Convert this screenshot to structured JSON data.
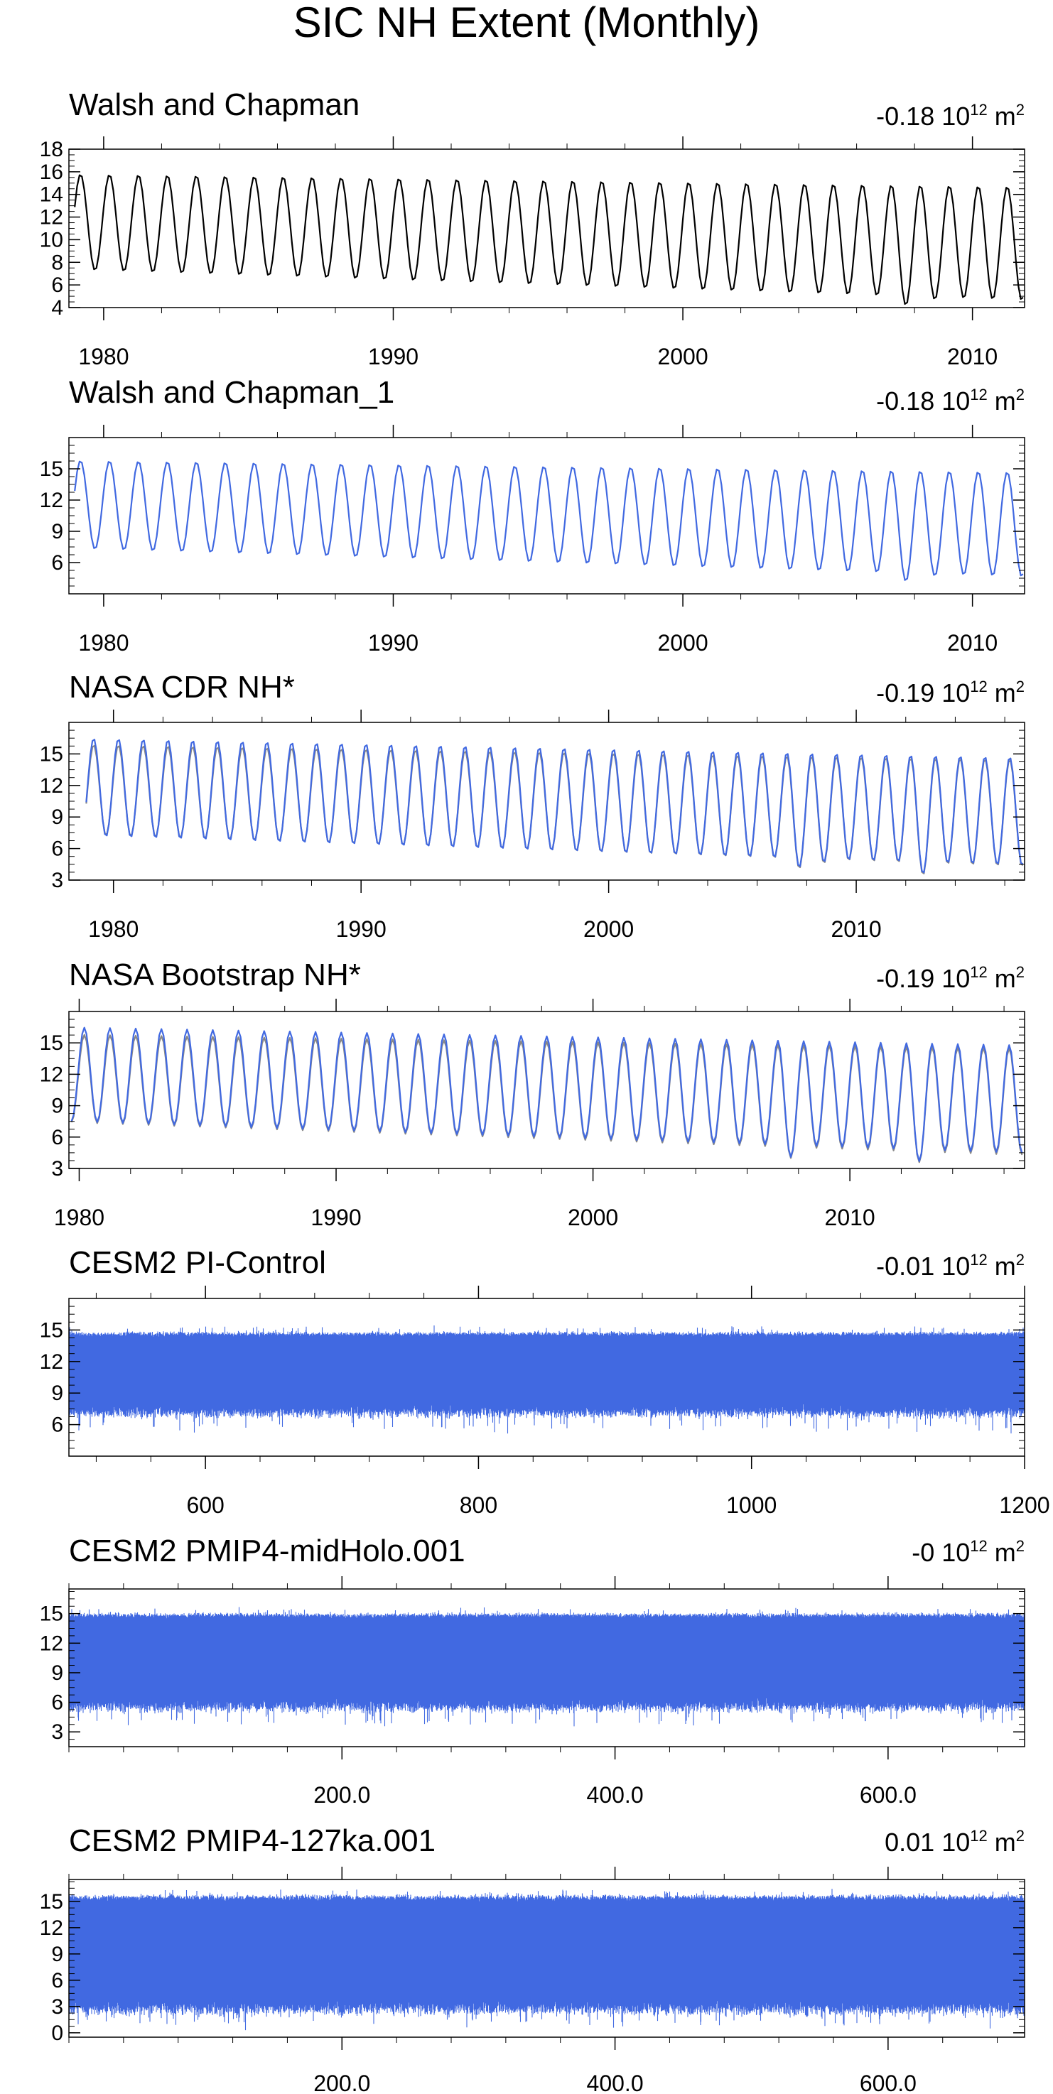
{
  "figure": {
    "title": "SIC NH Extent (Monthly)",
    "colors": {
      "observed": "#000000",
      "blue": "#4169e1",
      "grey": "#888888"
    }
  },
  "chart_data": [
    {
      "id": "p1",
      "type": "line",
      "title": "Walsh and Chapman",
      "trend": {
        "value": "-0.18",
        "base": "10",
        "exp": "12",
        "unit": "m",
        "unit_exp": "2"
      },
      "xlim": [
        1978.8,
        2011.8
      ],
      "xticks": [
        1980,
        1990,
        2000,
        2010
      ],
      "xtick_labels": [
        "1980",
        "1990",
        "2000",
        "2010"
      ],
      "ylim": [
        4,
        18
      ],
      "yticks": [
        4,
        6,
        8,
        10,
        12,
        14,
        16,
        18
      ],
      "ytick_labels": [
        "4",
        "6",
        "8",
        "10",
        "12",
        "14",
        "16",
        "18"
      ],
      "series": [
        {
          "name": "Walsh and Chapman",
          "color": "#000000",
          "style": "seasonal",
          "x_start": 1979.0,
          "x_end": 2011.75,
          "max_start": 15.7,
          "max_end": 14.5,
          "min_start": 7.7,
          "min_end": 4.8,
          "noise": 0.6,
          "low_events": [
            [
              2007.7,
              4.2
            ],
            [
              2008.7,
              4.7
            ],
            [
              2011.7,
              4.7
            ]
          ]
        }
      ]
    },
    {
      "id": "p2",
      "type": "line",
      "title": "Walsh and Chapman_1",
      "trend": {
        "value": "-0.18",
        "base": "10",
        "exp": "12",
        "unit": "m",
        "unit_exp": "2"
      },
      "xlim": [
        1978.8,
        2011.8
      ],
      "xticks": [
        1980,
        1990,
        2000,
        2010
      ],
      "xtick_labels": [
        "1980",
        "1990",
        "2000",
        "2010"
      ],
      "ylim": [
        3,
        18
      ],
      "yticks": [
        6,
        9,
        12,
        15
      ],
      "ytick_labels": [
        "6",
        "9",
        "12",
        "15"
      ],
      "series": [
        {
          "name": "Walsh and Chapman_1",
          "color": "#4169e1",
          "style": "seasonal",
          "x_start": 1979.0,
          "x_end": 2011.75,
          "max_start": 15.7,
          "max_end": 14.5,
          "min_start": 7.7,
          "min_end": 4.8,
          "noise": 0.6,
          "low_events": [
            [
              2007.7,
              4.2
            ],
            [
              2008.7,
              4.7
            ],
            [
              2011.7,
              4.7
            ]
          ]
        }
      ]
    },
    {
      "id": "p3",
      "type": "line",
      "title": "NASA CDR NH*",
      "trend": {
        "value": "-0.19",
        "base": "10",
        "exp": "12",
        "unit": "m",
        "unit_exp": "2"
      },
      "xlim": [
        1978.2,
        2016.8
      ],
      "xticks": [
        1980,
        1990,
        2000,
        2010
      ],
      "xtick_labels": [
        "1980",
        "1990",
        "2000",
        "2010"
      ],
      "ylim": [
        3,
        18
      ],
      "yticks": [
        3,
        6,
        9,
        12,
        15
      ],
      "ytick_labels": [
        "3",
        "6",
        "9",
        "12",
        "15"
      ],
      "series": [
        {
          "name": "grey",
          "color": "#888888",
          "style": "seasonal",
          "x_start": 1978.9,
          "x_end": 2016.7,
          "max_start": 15.8,
          "max_end": 14.3,
          "min_start": 7.6,
          "min_end": 4.4,
          "noise": 0.5,
          "low_events": [
            [
              2007.7,
              4.1
            ],
            [
              2012.7,
              3.5
            ],
            [
              2008.7,
              4.6
            ]
          ]
        },
        {
          "name": "blue",
          "color": "#4169e1",
          "style": "seasonal",
          "x_start": 1978.9,
          "x_end": 2016.7,
          "max_start": 16.4,
          "max_end": 14.5,
          "min_start": 7.5,
          "min_end": 4.5,
          "noise": 0.5,
          "low_events": [
            [
              2007.7,
              4.2
            ],
            [
              2012.7,
              3.6
            ],
            [
              2008.7,
              4.7
            ]
          ]
        }
      ]
    },
    {
      "id": "p4",
      "type": "line",
      "title": "NASA Bootstrap NH*",
      "trend": {
        "value": "-0.19",
        "base": "10",
        "exp": "12",
        "unit": "m",
        "unit_exp": "2"
      },
      "xlim": [
        1979.6,
        2016.8
      ],
      "xticks": [
        1980,
        1990,
        2000,
        2010
      ],
      "xtick_labels": [
        "1980",
        "1990",
        "2000",
        "2010"
      ],
      "ylim": [
        3,
        18
      ],
      "yticks": [
        3,
        6,
        9,
        12,
        15
      ],
      "ytick_labels": [
        "3",
        "6",
        "9",
        "12",
        "15"
      ],
      "series": [
        {
          "name": "grey",
          "color": "#888888",
          "style": "seasonal",
          "x_start": 1979.7,
          "x_end": 2016.7,
          "max_start": 15.7,
          "max_end": 14.3,
          "min_start": 7.7,
          "min_end": 4.4,
          "noise": 0.5,
          "low_events": [
            [
              2007.7,
              4.0
            ],
            [
              2012.7,
              3.6
            ]
          ]
        },
        {
          "name": "blue",
          "color": "#4169e1",
          "style": "seasonal",
          "x_start": 1979.7,
          "x_end": 2016.7,
          "max_start": 16.4,
          "max_end": 14.6,
          "min_start": 7.8,
          "min_end": 4.6,
          "noise": 0.5,
          "low_events": [
            [
              2007.7,
              4.1
            ],
            [
              2012.7,
              3.7
            ]
          ]
        }
      ]
    },
    {
      "id": "p5",
      "type": "area",
      "title": "CESM2 PI-Control",
      "trend": {
        "value": "-0.01",
        "base": "10",
        "exp": "12",
        "unit": "m",
        "unit_exp": "2"
      },
      "xlim": [
        500,
        1200
      ],
      "xticks": [
        600,
        800,
        1000,
        1200
      ],
      "xtick_labels": [
        "600",
        "800",
        "1000",
        "1200"
      ],
      "ylim": [
        3,
        18
      ],
      "yticks": [
        6,
        9,
        12,
        15
      ],
      "ytick_labels": [
        "6",
        "9",
        "12",
        "15"
      ],
      "series": [
        {
          "name": "PI-Control",
          "color": "#4169e1",
          "style": "band",
          "max_mean": 14.6,
          "min_mean": 7.2,
          "noise": 0.6
        }
      ]
    },
    {
      "id": "p6",
      "type": "area",
      "title": "CESM2 PMIP4-midHolo.001",
      "trend": {
        "value": "-0",
        "base": "10",
        "exp": "12",
        "unit": "m",
        "unit_exp": "2"
      },
      "xlim": [
        0,
        700
      ],
      "xticks": [
        200,
        400,
        600
      ],
      "xtick_labels": [
        "200.0",
        "400.0",
        "600.0"
      ],
      "ylim": [
        1.5,
        17.5
      ],
      "yticks": [
        3,
        6,
        9,
        12,
        15
      ],
      "ytick_labels": [
        "3",
        "6",
        "9",
        "12",
        "15"
      ],
      "series": [
        {
          "name": "midHolo",
          "color": "#4169e1",
          "style": "band",
          "max_mean": 14.8,
          "min_mean": 5.6,
          "noise": 0.7
        }
      ]
    },
    {
      "id": "p7",
      "type": "area",
      "title": "CESM2 PMIP4-127ka.001",
      "trend": {
        "value": "0.01",
        "base": "10",
        "exp": "12",
        "unit": "m",
        "unit_exp": "2"
      },
      "xlim": [
        0,
        700
      ],
      "xticks": [
        200,
        400,
        600
      ],
      "xtick_labels": [
        "200.0",
        "400.0",
        "600.0"
      ],
      "ylim": [
        -0.5,
        17.5
      ],
      "yticks": [
        0,
        3,
        6,
        9,
        12,
        15
      ],
      "ytick_labels": [
        "0",
        "3",
        "6",
        "9",
        "12",
        "15"
      ],
      "series": [
        {
          "name": "127ka",
          "color": "#4169e1",
          "style": "band",
          "max_mean": 15.4,
          "min_mean": 2.8,
          "noise": 0.9
        }
      ]
    }
  ]
}
